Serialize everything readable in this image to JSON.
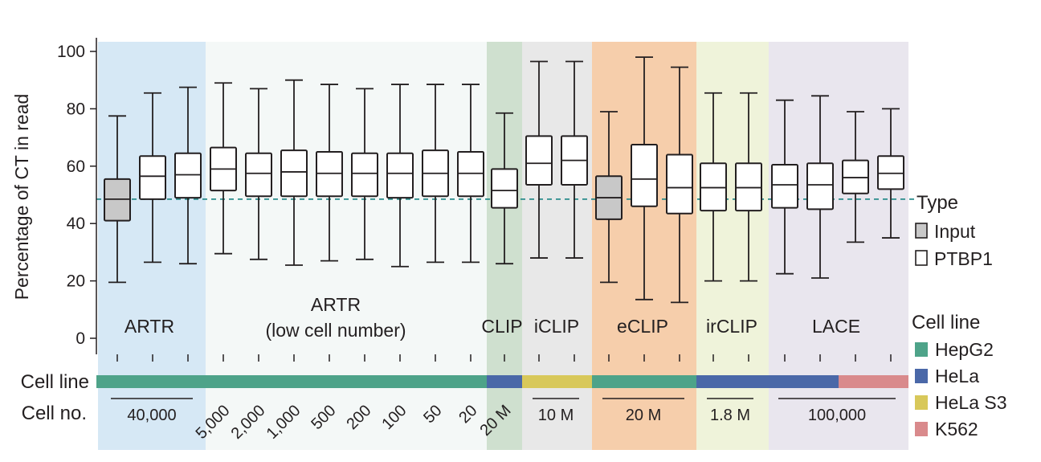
{
  "chart_data": {
    "type": "box",
    "ylabel": "Percentage of CT in read",
    "ylim": [
      0,
      100
    ],
    "yticks": [
      0,
      20,
      40,
      60,
      80,
      100
    ],
    "reference_line": 48.5,
    "groups": [
      {
        "id": "artr",
        "label_lines": [
          "ARTR"
        ],
        "color": "#d6e8f5"
      },
      {
        "id": "artr-low",
        "label_lines": [
          "ARTR",
          "(low cell number)"
        ],
        "color": "#f4f8f7"
      },
      {
        "id": "clip",
        "label_lines": [
          "CLIP"
        ],
        "color": "#cfe0cf"
      },
      {
        "id": "iclip",
        "label_lines": [
          "iCLIP"
        ],
        "color": "#e8e8e8"
      },
      {
        "id": "eclip",
        "label_lines": [
          "eCLIP"
        ],
        "color": "#f6ceab"
      },
      {
        "id": "irclip",
        "label_lines": [
          "irCLIP"
        ],
        "color": "#eff3da"
      },
      {
        "id": "lace",
        "label_lines": [
          "LACE"
        ],
        "color": "#e9e6ee"
      }
    ],
    "boxes": [
      {
        "group": "artr",
        "type": "Input",
        "min": 19.5,
        "q1": 41,
        "median": 48.5,
        "q3": 55.5,
        "max": 77.5
      },
      {
        "group": "artr",
        "type": "PTBP1",
        "min": 26.5,
        "q1": 48.5,
        "median": 56.5,
        "q3": 63.5,
        "max": 85.5
      },
      {
        "group": "artr",
        "type": "PTBP1",
        "min": 26,
        "q1": 49,
        "median": 57,
        "q3": 64.5,
        "max": 87.5
      },
      {
        "group": "artr-low",
        "type": "PTBP1",
        "min": 29.5,
        "q1": 51.5,
        "median": 59,
        "q3": 66.5,
        "max": 89
      },
      {
        "group": "artr-low",
        "type": "PTBP1",
        "min": 27.5,
        "q1": 49.5,
        "median": 57.5,
        "q3": 64.5,
        "max": 87
      },
      {
        "group": "artr-low",
        "type": "PTBP1",
        "min": 25.5,
        "q1": 49.5,
        "median": 58,
        "q3": 65.5,
        "max": 90
      },
      {
        "group": "artr-low",
        "type": "PTBP1",
        "min": 27,
        "q1": 49.5,
        "median": 57.5,
        "q3": 65,
        "max": 88.5
      },
      {
        "group": "artr-low",
        "type": "PTBP1",
        "min": 27.5,
        "q1": 49.5,
        "median": 57.5,
        "q3": 64.5,
        "max": 87
      },
      {
        "group": "artr-low",
        "type": "PTBP1",
        "min": 25,
        "q1": 49,
        "median": 57.5,
        "q3": 64.5,
        "max": 88.5
      },
      {
        "group": "artr-low",
        "type": "PTBP1",
        "min": 26.5,
        "q1": 49.5,
        "median": 57.5,
        "q3": 65.5,
        "max": 88.5
      },
      {
        "group": "artr-low",
        "type": "PTBP1",
        "min": 26.5,
        "q1": 49.5,
        "median": 57.5,
        "q3": 65,
        "max": 88.5
      },
      {
        "group": "clip",
        "type": "PTBP1",
        "min": 26,
        "q1": 45.5,
        "median": 51.5,
        "q3": 59,
        "max": 78.5
      },
      {
        "group": "iclip",
        "type": "PTBP1",
        "min": 28,
        "q1": 53.5,
        "median": 61,
        "q3": 70.5,
        "max": 96.5
      },
      {
        "group": "iclip",
        "type": "PTBP1",
        "min": 28,
        "q1": 53.5,
        "median": 62,
        "q3": 70.5,
        "max": 96.5
      },
      {
        "group": "eclip",
        "type": "Input",
        "min": 19.5,
        "q1": 41.5,
        "median": 49,
        "q3": 56.5,
        "max": 79
      },
      {
        "group": "eclip",
        "type": "PTBP1",
        "min": 13.5,
        "q1": 46,
        "median": 55.5,
        "q3": 67.5,
        "max": 98
      },
      {
        "group": "eclip",
        "type": "PTBP1",
        "min": 12.5,
        "q1": 43.5,
        "median": 52.5,
        "q3": 64,
        "max": 94.5
      },
      {
        "group": "irclip",
        "type": "PTBP1",
        "min": 20,
        "q1": 44.5,
        "median": 52.5,
        "q3": 61,
        "max": 85.5
      },
      {
        "group": "irclip",
        "type": "PTBP1",
        "min": 20,
        "q1": 44.5,
        "median": 52.5,
        "q3": 61,
        "max": 85.5
      },
      {
        "group": "lace",
        "type": "PTBP1",
        "min": 22.5,
        "q1": 45.5,
        "median": 53.5,
        "q3": 60.5,
        "max": 83
      },
      {
        "group": "lace",
        "type": "PTBP1",
        "min": 21,
        "q1": 45,
        "median": 53.5,
        "q3": 61,
        "max": 84.5
      },
      {
        "group": "lace",
        "type": "PTBP1",
        "min": 33.5,
        "q1": 50.5,
        "median": 56,
        "q3": 62,
        "max": 79
      },
      {
        "group": "lace",
        "type": "PTBP1",
        "min": 35,
        "q1": 52,
        "median": 57.5,
        "q3": 63.5,
        "max": 80
      }
    ],
    "row_labels": {
      "cell_line": "Cell line",
      "cell_no": "Cell no."
    },
    "cell_line_segments": [
      {
        "line": "HepG2",
        "from_box": 0,
        "to_box": 10
      },
      {
        "line": "HeLa",
        "from_box": 11,
        "to_box": 11
      },
      {
        "line": "HeLa S3",
        "from_box": 12,
        "to_box": 13
      },
      {
        "line": "HepG2",
        "from_box": 14,
        "to_box": 16
      },
      {
        "line": "HeLa",
        "from_box": 17,
        "to_box": 20
      },
      {
        "line": "K562",
        "from_box": 21,
        "to_box": 22
      }
    ],
    "cell_counts": {
      "bracketed": [
        {
          "label": "40,000",
          "from_box": 0,
          "to_box": 2
        },
        {
          "label": "10 M",
          "from_box": 12,
          "to_box": 13
        },
        {
          "label": "20 M",
          "from_box": 14,
          "to_box": 16
        },
        {
          "label": "1.8 M",
          "from_box": 17,
          "to_box": 18
        },
        {
          "label": "100,000",
          "from_box": 19,
          "to_box": 22
        }
      ],
      "rotated": [
        {
          "label": "5,000",
          "box": 3
        },
        {
          "label": "2,000",
          "box": 4
        },
        {
          "label": "1,000",
          "box": 5
        },
        {
          "label": "500",
          "box": 6
        },
        {
          "label": "200",
          "box": 7
        },
        {
          "label": "100",
          "box": 8
        },
        {
          "label": "50",
          "box": 9
        },
        {
          "label": "20",
          "box": 10
        },
        {
          "label": "20 M",
          "box": 11
        }
      ]
    },
    "legend": {
      "type_title": "Type",
      "type_items": [
        {
          "label": "Input",
          "fill": "#c8c8c8"
        },
        {
          "label": "PTBP1",
          "fill": "#ffffff"
        }
      ],
      "cell_title": "Cell line",
      "cell_items": [
        {
          "label": "HepG2",
          "color": "#4ea389"
        },
        {
          "label": "HeLa",
          "color": "#4a68a8"
        },
        {
          "label": "HeLa S3",
          "color": "#d8c85a"
        },
        {
          "label": "K562",
          "color": "#d98a8c"
        }
      ]
    },
    "colors": {
      "input_fill": "#c8c8c8",
      "ptbp1_fill": "#ffffff",
      "reference_line": "#2a8c8c"
    }
  }
}
